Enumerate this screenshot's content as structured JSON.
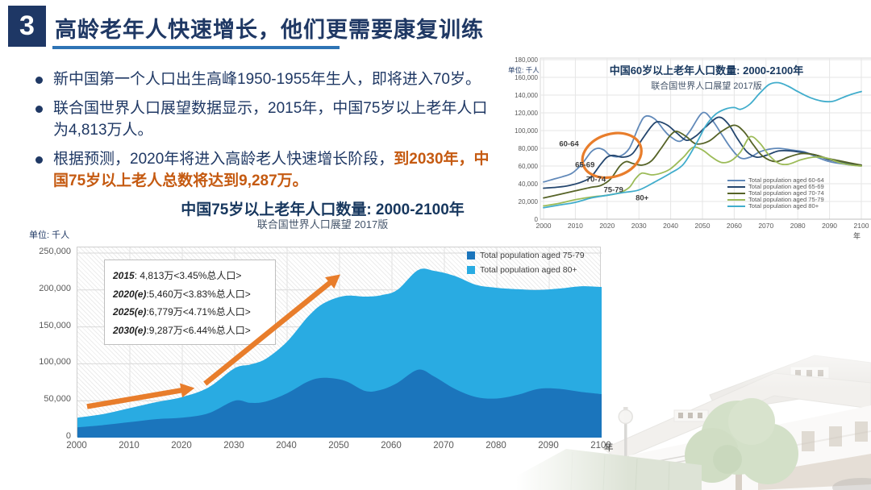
{
  "slide": {
    "page_number": "3",
    "title": "高龄老年人快速增长，他们更需要康复训练",
    "bullets": [
      {
        "text": "新中国第一个人口出生高峰1950-1955年生人，即将进入70岁。",
        "highlight": ""
      },
      {
        "text": "联合国世界人口展望数据显示，2015年，中国75岁以上老年人口为4,813万人。",
        "highlight": ""
      },
      {
        "text": "根据预测，2020年将进入高龄老人快速增长阶段，",
        "highlight": "到2030年，中国75岁以上老人总数将达到9,287万。"
      }
    ]
  },
  "colors": {
    "navy": "#1f3864",
    "title_navy": "#17375e",
    "underline_blue": "#2e74b5",
    "highlight_orange": "#c55a11",
    "annotation_orange": "#e87d2b",
    "area_dark_blue": "#1b75bc",
    "area_light_blue": "#29abe2"
  },
  "chart_data": [
    {
      "id": "line-chart-60plus",
      "type": "line",
      "title": "中国60岁以上老年人口数量: 2000-2100年",
      "subtitle": "联合国世界人口展望 2017版",
      "unit_label": "单位: 千人",
      "x_axis_suffix": "年",
      "ylim": [
        0,
        180000
      ],
      "ytick_step": 20000,
      "xticks": [
        2000,
        2010,
        2020,
        2030,
        2040,
        2050,
        2060,
        2070,
        2080,
        2090,
        2100
      ],
      "grid": true,
      "legend_position": "lower-right",
      "series": [
        {
          "name": "Total population aged 60-64",
          "color": "#6189b9",
          "x": [
            2000,
            2003,
            2006,
            2009,
            2012,
            2015,
            2017,
            2019,
            2021,
            2024,
            2027,
            2030,
            2032,
            2035,
            2038,
            2040,
            2043,
            2046,
            2050,
            2053,
            2056,
            2059,
            2062,
            2065,
            2068,
            2071,
            2074,
            2078,
            2082,
            2086,
            2090,
            2095,
            2100
          ],
          "y": [
            42000,
            45000,
            48000,
            52000,
            62000,
            76000,
            80000,
            78000,
            72000,
            71000,
            80000,
            105000,
            116000,
            113000,
            100000,
            93000,
            88000,
            99000,
            120000,
            112000,
            96000,
            80000,
            69000,
            70000,
            76000,
            79000,
            80000,
            78000,
            76000,
            70000,
            65000,
            62000,
            60000
          ]
        },
        {
          "name": "Total population aged 65-69",
          "color": "#24466e",
          "x": [
            2000,
            2004,
            2008,
            2012,
            2015,
            2018,
            2020,
            2022,
            2025,
            2028,
            2031,
            2034,
            2036,
            2039,
            2042,
            2045,
            2048,
            2051,
            2055,
            2058,
            2061,
            2064,
            2067,
            2070,
            2074,
            2078,
            2082,
            2086,
            2090,
            2095,
            2100
          ],
          "y": [
            35000,
            36000,
            38000,
            42000,
            48000,
            62000,
            70000,
            72000,
            70000,
            74000,
            90000,
            105000,
            110000,
            106000,
            97000,
            89000,
            94000,
            104000,
            115000,
            108000,
            91000,
            76000,
            70000,
            72000,
            77000,
            77000,
            75000,
            72000,
            67000,
            63000,
            61000
          ]
        },
        {
          "name": "Total population aged 70-74",
          "color": "#566327",
          "x": [
            2000,
            2005,
            2010,
            2015,
            2018,
            2021,
            2024,
            2026,
            2028,
            2031,
            2034,
            2037,
            2040,
            2042,
            2045,
            2048,
            2052,
            2056,
            2060,
            2063,
            2066,
            2069,
            2073,
            2077,
            2081,
            2085,
            2089,
            2093,
            2100
          ],
          "y": [
            24000,
            28000,
            32000,
            36000,
            38000,
            45000,
            60000,
            65000,
            63000,
            61000,
            66000,
            80000,
            95000,
            99000,
            93000,
            85000,
            88000,
            99000,
            106000,
            99000,
            84000,
            71000,
            65000,
            70000,
            74000,
            73000,
            69000,
            66000,
            61000
          ]
        },
        {
          "name": "Total population aged 75-79",
          "color": "#9cbb58",
          "x": [
            2000,
            2005,
            2010,
            2015,
            2020,
            2024,
            2027,
            2029,
            2031,
            2034,
            2037,
            2040,
            2044,
            2047,
            2050,
            2053,
            2056,
            2059,
            2062,
            2065,
            2068,
            2071,
            2074,
            2077,
            2081,
            2085,
            2089,
            2093,
            2097,
            2100
          ],
          "y": [
            15000,
            18000,
            22000,
            25000,
            27000,
            30000,
            36000,
            46000,
            52000,
            50000,
            52000,
            57000,
            70000,
            81000,
            78000,
            70000,
            64000,
            66000,
            76000,
            93000,
            86000,
            72000,
            63000,
            62000,
            67000,
            70000,
            69000,
            64000,
            61000,
            60000
          ]
        },
        {
          "name": "Total population aged 80+",
          "color": "#41adcc",
          "x": [
            2000,
            2005,
            2010,
            2015,
            2020,
            2025,
            2030,
            2035,
            2040,
            2044,
            2048,
            2051,
            2054,
            2057,
            2060,
            2062,
            2065,
            2068,
            2071,
            2074,
            2077,
            2080,
            2084,
            2088,
            2091,
            2094,
            2097,
            2100
          ],
          "y": [
            13000,
            16000,
            19000,
            24000,
            27000,
            30000,
            33000,
            42000,
            52000,
            62000,
            85000,
            105000,
            118000,
            124000,
            126000,
            124000,
            130000,
            142000,
            152000,
            154000,
            150000,
            144000,
            137000,
            133000,
            133000,
            137000,
            141000,
            144000
          ]
        }
      ],
      "plot_labels": [
        {
          "text": "60-64",
          "year": 2008,
          "value": 85000
        },
        {
          "text": "65-69",
          "year": 2013,
          "value": 61000
        },
        {
          "text": "70-74",
          "year": 2016.5,
          "value": 45000
        },
        {
          "text": "75-79",
          "year": 2022,
          "value": 32500
        },
        {
          "text": "80+",
          "year": 2031,
          "value": 24000
        }
      ],
      "annotation_ellipse": {
        "center_year": 2021.5,
        "center_value": 72000,
        "rx_years": 9.5,
        "ry_value": 24000,
        "rotate_deg": -18,
        "color": "#e87d2b"
      }
    },
    {
      "id": "area-chart-75plus",
      "type": "area",
      "stacked": true,
      "title": "中国75岁以上老年人口数量: 2000-2100年",
      "subtitle": "联合国世界人口展望 2017版",
      "unit_label": "单位: 千人",
      "x_axis_suffix": "年",
      "ylim": [
        0,
        250000
      ],
      "ytick_step": 50000,
      "xticks": [
        2000,
        2010,
        2020,
        2030,
        2040,
        2050,
        2060,
        2070,
        2080,
        2090,
        2100
      ],
      "grid": true,
      "legend_position": "upper-right",
      "x": [
        2000,
        2005,
        2010,
        2015,
        2020,
        2025,
        2030,
        2033,
        2036,
        2040,
        2044,
        2047,
        2051,
        2055,
        2058,
        2061,
        2065,
        2068,
        2072,
        2076,
        2080,
        2084,
        2088,
        2092,
        2096,
        2100
      ],
      "series": [
        {
          "name": "Total population aged 75-79",
          "color": "#1b75bc",
          "values": [
            14000,
            17000,
            21000,
            25000,
            27000,
            33000,
            50000,
            47000,
            49000,
            60000,
            76000,
            81000,
            77000,
            63000,
            65000,
            74000,
            92000,
            83000,
            66000,
            55000,
            53000,
            58000,
            66000,
            66000,
            62000,
            59000
          ]
        },
        {
          "name": "Total population aged 80+",
          "color": "#29abe2",
          "values": [
            13000,
            15000,
            19000,
            23000,
            28000,
            35000,
            44000,
            52000,
            58000,
            70000,
            88000,
            101000,
            115000,
            128000,
            128000,
            126000,
            135000,
            143000,
            153000,
            152000,
            150000,
            143000,
            134000,
            136000,
            143000,
            145000
          ]
        }
      ],
      "callout": {
        "rows": [
          {
            "year": "2015",
            "text": ": 4,813万<3.45%总人口>"
          },
          {
            "year": "2020(e)",
            "text": ":5,460万<3.83%总人口>"
          },
          {
            "year": "2025(e)",
            "text": ":6,779万<4.71%总人口>"
          },
          {
            "year": "2030(e)",
            "text": ":9,287万<6.44%总人口>"
          }
        ]
      },
      "arrows": [
        {
          "x1_year": 2002,
          "y1_value": 41000,
          "x2_year": 2022.5,
          "y2_value": 66000,
          "color": "#e87d2b"
        },
        {
          "x1_year": 2024.5,
          "y1_value": 72000,
          "x2_year": 2050.3,
          "y2_value": 220000,
          "color": "#e87d2b"
        }
      ]
    }
  ]
}
